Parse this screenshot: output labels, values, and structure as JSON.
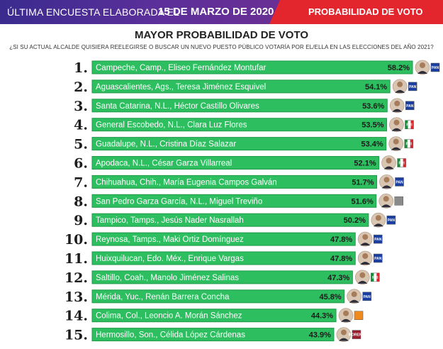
{
  "banner": {
    "text_left": "ÚLTIMA ENCUESTA ELABORADA EL",
    "date": "15 DE MARZO DE 2020",
    "text_right": "PROBABILIDAD DE VOTO"
  },
  "colors": {
    "bar": "#2dbe5f",
    "bar_border": "#1f9a48",
    "banner_purple": "#4a2d94",
    "banner_red": "#e3262d"
  },
  "chart_data": {
    "type": "bar",
    "orientation": "horizontal",
    "title": "MAYOR PROBABILIDAD DE VOTO",
    "subtitle": "¿SI SU ACTUAL ALCALDE QUISIERA REELEGIRSE O BUSCAR UN NUEVO PUESTO PÚBLICO VOTARÍA POR EL/ELLA EN LAS ELECCIONES DEL AÑO 2021?",
    "ranks": [
      "1.",
      "2.",
      "3.",
      "4.",
      "5.",
      "6.",
      "7.",
      "8.",
      "9.",
      "10.",
      "11.",
      "12.",
      "13.",
      "14.",
      "15."
    ],
    "categories": [
      "Campeche, Camp., Eliseo Fernández Montufar",
      "Aguascalientes, Ags., Teresa Jiménez Esquivel",
      "Santa Catarina, N.L., Héctor Castillo Olivares",
      "General Escobedo, N.L., Clara Luz Flores",
      "Guadalupe, N.L., Cristina Díaz Salazar",
      "Apodaca, N.L., César Garza Villarreal",
      "Chihuahua, Chih., María Eugenia Campos Galván",
      "San Pedro Garza García, N.L., Miguel Treviño",
      "Tampico, Tamps., Jesús Nader Nasrallah",
      "Reynosa, Tamps., Maki Ortiz Domínguez",
      "Huixquilucan, Edo. Méx., Enrique Vargas",
      "Saltillo, Coah., Manolo Jiménez Salinas",
      "Mérida, Yuc., Renán Barrera Concha",
      "Colima, Col., Leoncio A. Morán Sánchez",
      "Hermosillo, Son., Célida López Cárdenas"
    ],
    "values": [
      58.2,
      54.1,
      53.6,
      53.5,
      53.4,
      52.1,
      51.7,
      51.6,
      50.2,
      47.8,
      47.8,
      47.3,
      45.8,
      44.3,
      43.9
    ],
    "value_labels": [
      "58.2%",
      "54.1%",
      "53.6%",
      "53.5%",
      "53.4%",
      "52.1%",
      "51.7%",
      "51.6%",
      "50.2%",
      "47.8%",
      "47.8%",
      "47.3%",
      "45.8%",
      "44.3%",
      "43.9%"
    ],
    "party_icons": [
      "pan-logo",
      "pan-logo",
      "pan-logo",
      "pri-logo",
      "pri-logo",
      "pri-logo",
      "pan-logo",
      "independent-logo",
      "pan-logo",
      "pan-logo",
      "pan-logo",
      "pri-logo",
      "pan-logo",
      "mc-logo",
      "morena-logo"
    ],
    "party_labels": [
      "PAN",
      "PAN",
      "PAN",
      "PRI",
      "PRI",
      "PRI",
      "PAN",
      "",
      "PAN",
      "PAN",
      "PAN",
      "PRI",
      "PAN",
      "",
      "MORENA"
    ],
    "xlim": [
      0,
      60
    ],
    "grid": false,
    "legend": "none"
  }
}
